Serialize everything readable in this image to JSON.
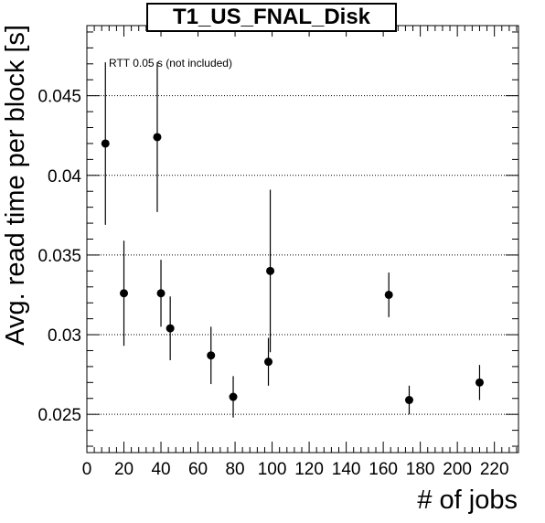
{
  "chart_data": {
    "type": "scatter",
    "title": "T1_US_FNAL_Disk",
    "xlabel": "# of jobs",
    "ylabel": "Avg. read time per block [s]",
    "xlim": [
      0,
      233
    ],
    "ylim": [
      0.0226,
      0.0494
    ],
    "xticks": [
      "0",
      "20",
      "40",
      "60",
      "80",
      "100",
      "120",
      "140",
      "160",
      "180",
      "200",
      "220"
    ],
    "yticks": [
      "0.025",
      "0.03",
      "0.035",
      "0.04",
      "0.045"
    ],
    "grid": "horizontal dotted at major y ticks",
    "annotation": "RTT 0.05 s (not included)",
    "points": [
      {
        "x": 10,
        "y": 0.042,
        "err": 0.0051
      },
      {
        "x": 20,
        "y": 0.0326,
        "err": 0.0033
      },
      {
        "x": 38,
        "y": 0.0424,
        "err": 0.0047
      },
      {
        "x": 40,
        "y": 0.0326,
        "err": 0.0021
      },
      {
        "x": 45,
        "y": 0.0304,
        "err": 0.002
      },
      {
        "x": 67,
        "y": 0.0287,
        "err": 0.0018
      },
      {
        "x": 79,
        "y": 0.0261,
        "err": 0.0013
      },
      {
        "x": 98,
        "y": 0.0283,
        "err": 0.0015
      },
      {
        "x": 99,
        "y": 0.034,
        "err": 0.0051
      },
      {
        "x": 163,
        "y": 0.0325,
        "err": 0.0014
      },
      {
        "x": 174,
        "y": 0.0259,
        "err": 0.0009
      },
      {
        "x": 212,
        "y": 0.027,
        "err": 0.0011
      }
    ]
  }
}
